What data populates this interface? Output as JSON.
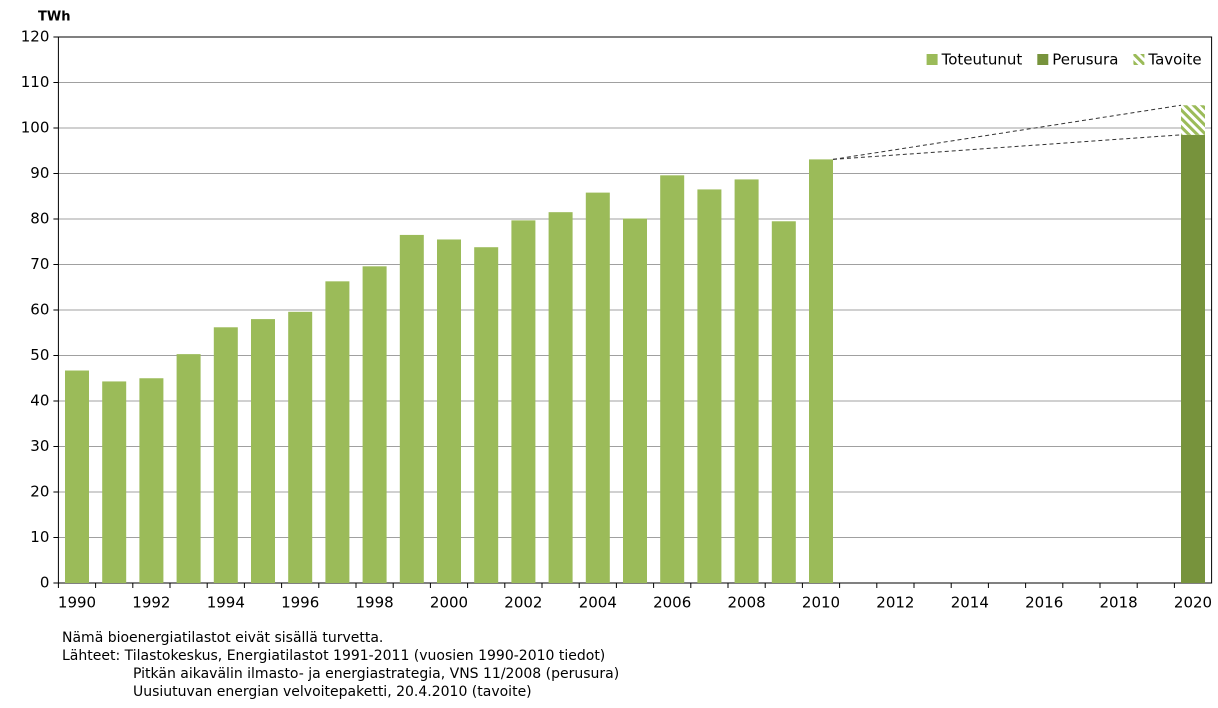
{
  "chart_data": {
    "type": "bar",
    "stacked": true,
    "y_label": "TWh",
    "categories": [
      "1990",
      null,
      "1992",
      null,
      "1994",
      null,
      "1996",
      null,
      "1998",
      null,
      "2000",
      null,
      "2002",
      null,
      "2004",
      null,
      "2006",
      null,
      "2008",
      null,
      "2010",
      null,
      "2012",
      null,
      "2014",
      null,
      "2016",
      null,
      "2018",
      null,
      "2020"
    ],
    "series": [
      {
        "name": "Toteutunut",
        "color": "#9bbb59",
        "values": [
          46.7,
          44.3,
          45,
          50.3,
          56.2,
          58,
          59.6,
          66.3,
          69.6,
          76.5,
          75.5,
          73.8,
          79.7,
          81.5,
          85.8,
          80.1,
          89.6,
          86.5,
          88.7,
          79.5,
          93.1,
          null,
          null,
          null,
          null,
          null,
          null,
          null,
          null,
          null,
          null
        ]
      },
      {
        "name": "Perusura",
        "color": "#77933c",
        "values": [
          null,
          null,
          null,
          null,
          null,
          null,
          null,
          null,
          null,
          null,
          null,
          null,
          null,
          null,
          null,
          null,
          null,
          null,
          null,
          null,
          null,
          null,
          null,
          null,
          null,
          null,
          null,
          null,
          null,
          null,
          98.5
        ]
      },
      {
        "name": "Tavoite",
        "color": "#9bbb59",
        "hatch": true,
        "values": [
          null,
          null,
          null,
          null,
          null,
          null,
          null,
          null,
          null,
          null,
          null,
          null,
          null,
          null,
          null,
          null,
          null,
          null,
          null,
          null,
          null,
          null,
          null,
          null,
          null,
          null,
          null,
          null,
          null,
          null,
          6.5
        ]
      }
    ],
    "ylim": [
      0,
      120
    ],
    "yticks": [
      0,
      10,
      20,
      30,
      40,
      50,
      60,
      70,
      80,
      90,
      100,
      110,
      120
    ],
    "grid": true,
    "legend": "top-right",
    "notes": [
      "Nämä bioenergiatilastot eivät sisällä turvetta.",
      "Lähteet: Tilastokeskus, Energiatilastot 1991-2011 (vuosien 1990-2010 tiedot)",
      "Pitkän aikavälin ilmasto- ja energiastrategia, VNS 11/2008 (perusura)",
      "Uusiutuvan energian velvoitepaketti, 20.4.2010 (tavoite)"
    ]
  }
}
